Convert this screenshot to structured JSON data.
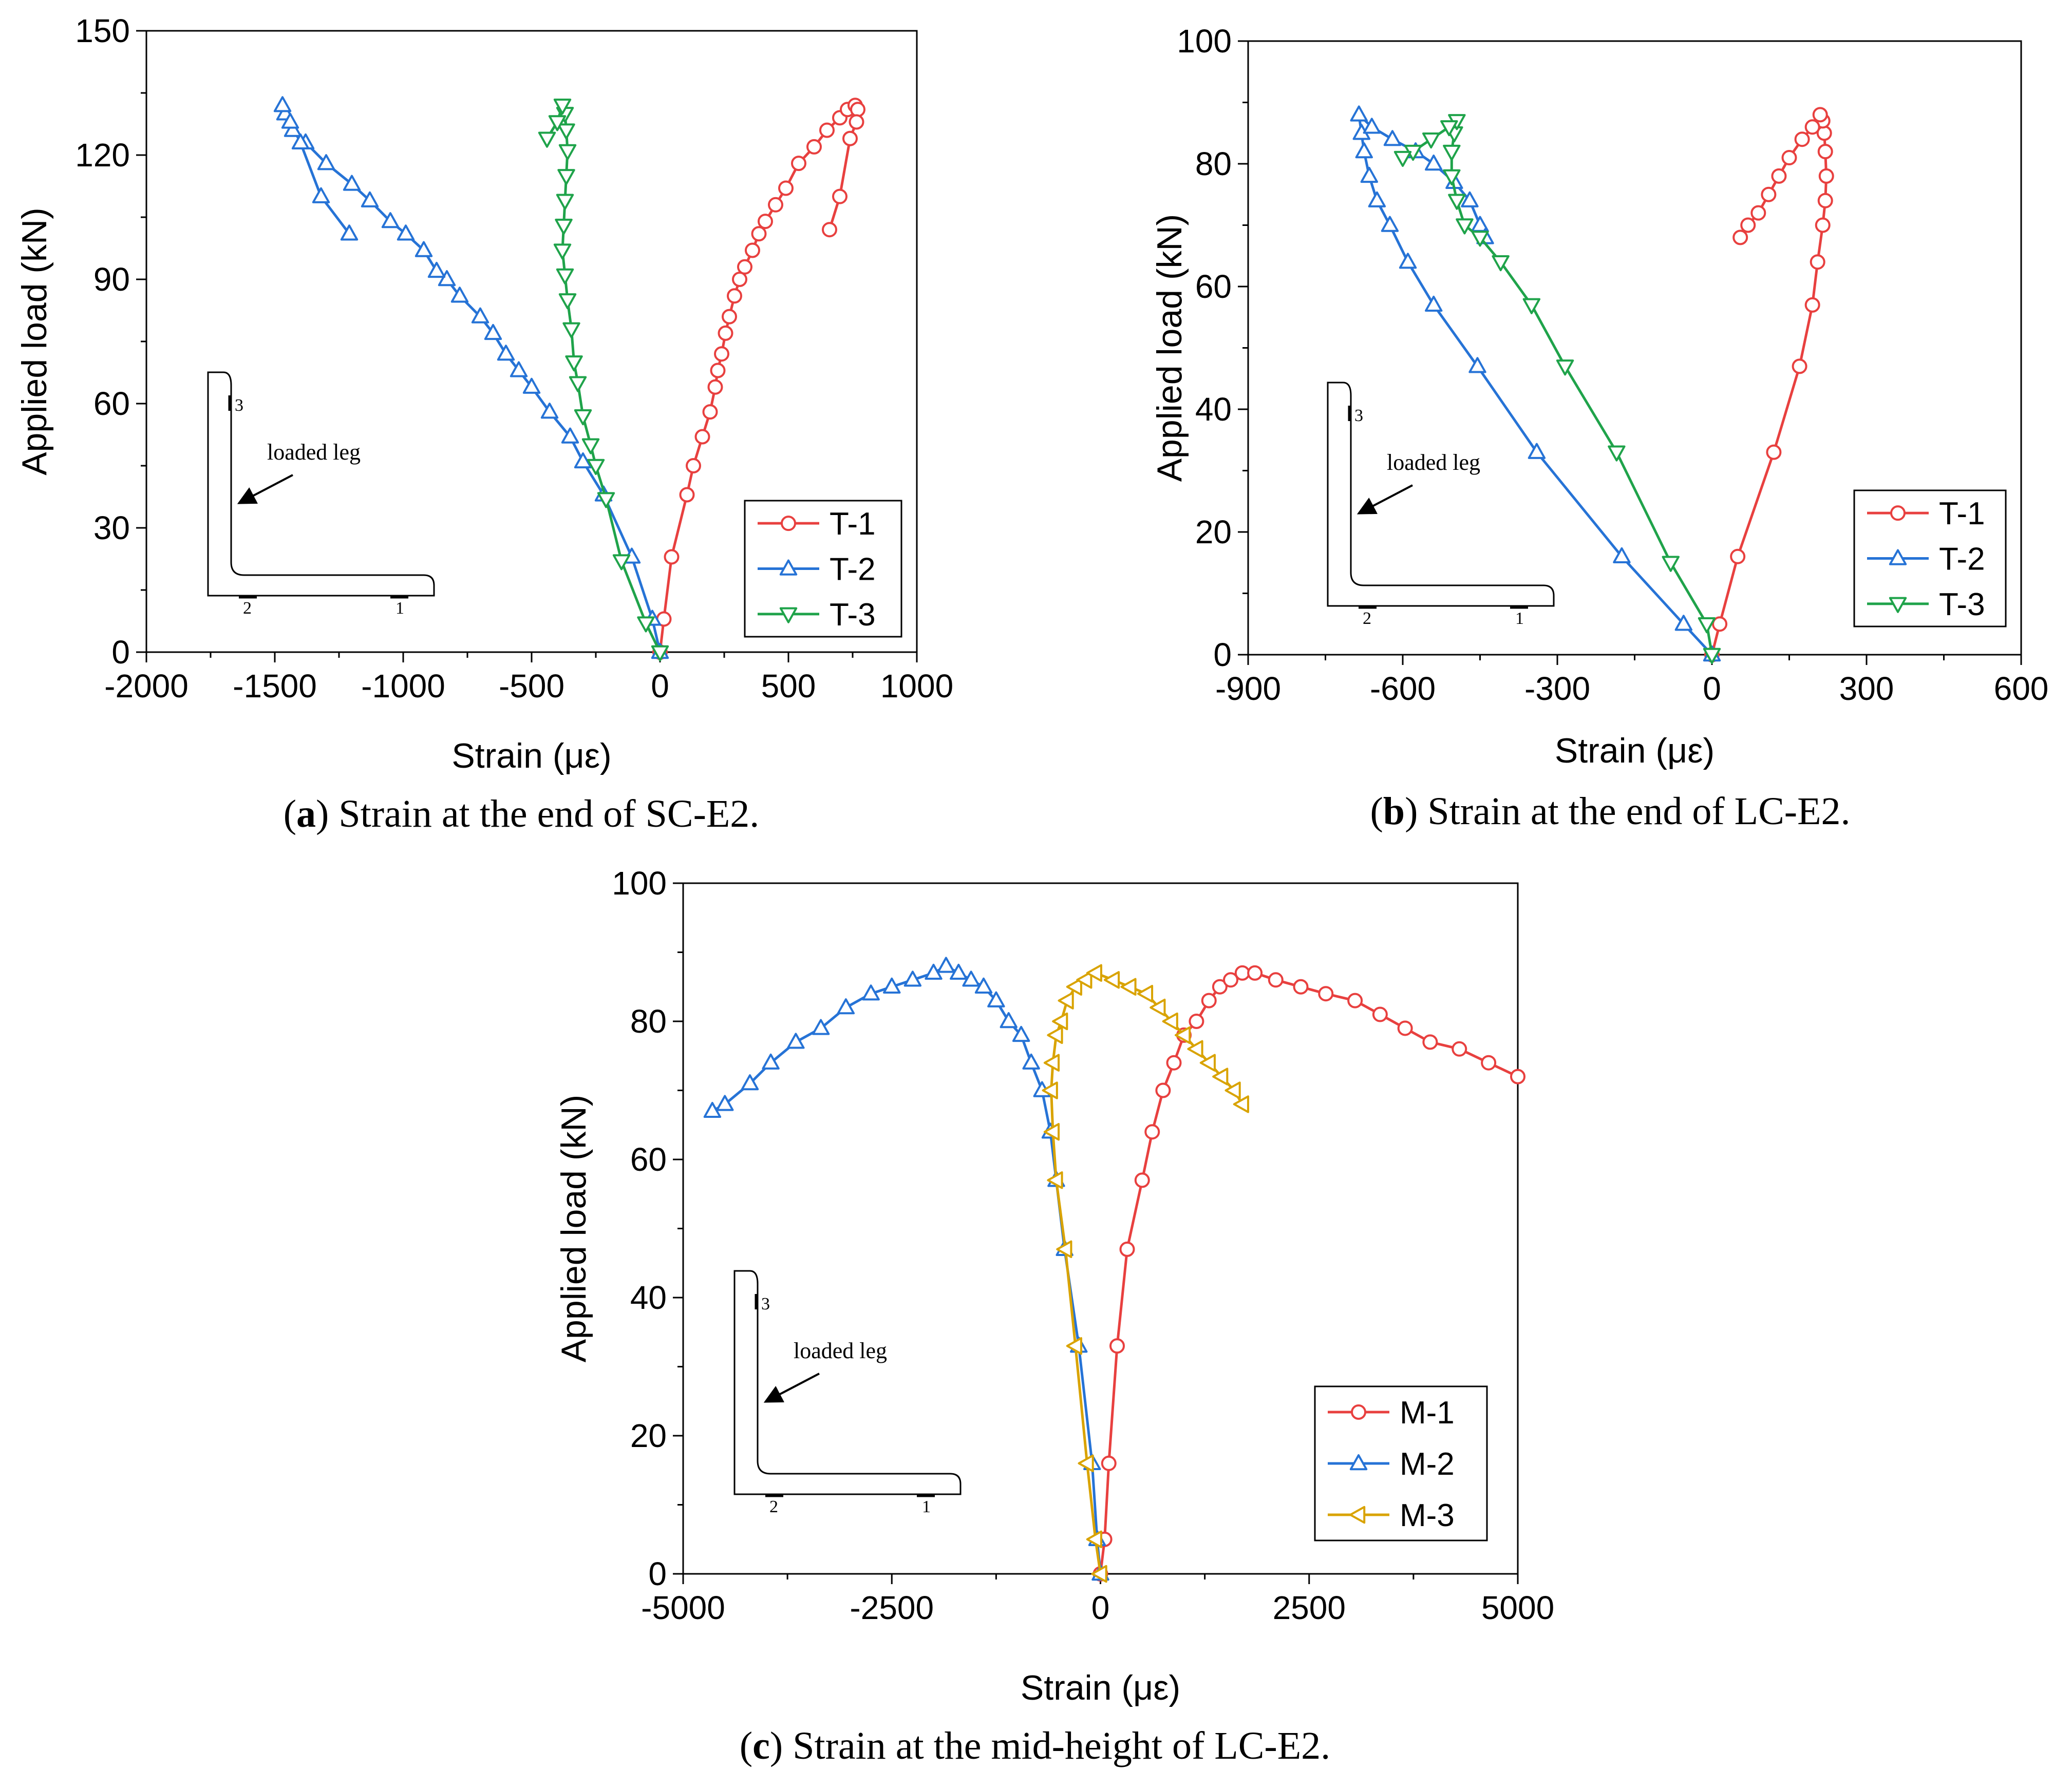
{
  "chart_data": [
    {
      "type": "line",
      "panel": "a",
      "caption_letter": "a",
      "caption_text": "Strain at the end of SC-E2.",
      "xlabel": "Strain (με)",
      "ylabel": "Applied load (kN)",
      "xlim": [
        -2000,
        1000
      ],
      "ylim": [
        0,
        150
      ],
      "xticks": [
        -2000,
        -1500,
        -1000,
        -500,
        0,
        500,
        1000
      ],
      "yticks": [
        0,
        30,
        60,
        90,
        120,
        150
      ],
      "xtick_labels": [
        "-2000",
        "-1500",
        "-1000",
        "-500",
        "0",
        "500",
        "1000"
      ],
      "ytick_labels": [
        "0",
        "30",
        "60",
        "90",
        "120",
        "150"
      ],
      "legend_position": "bottom-right",
      "inset": {
        "label": "loaded leg",
        "gauge_1": "1",
        "gauge_2": "2",
        "gauge_3": "3"
      },
      "series": [
        {
          "name": "T-1",
          "marker": "circle",
          "color": "#e8403f",
          "points": [
            [
              0,
              0
            ],
            [
              15,
              8
            ],
            [
              45,
              23
            ],
            [
              105,
              38
            ],
            [
              130,
              45
            ],
            [
              165,
              52
            ],
            [
              195,
              58
            ],
            [
              215,
              64
            ],
            [
              225,
              68
            ],
            [
              240,
              72
            ],
            [
              255,
              77
            ],
            [
              270,
              81
            ],
            [
              290,
              86
            ],
            [
              310,
              90
            ],
            [
              330,
              93
            ],
            [
              360,
              97
            ],
            [
              385,
              101
            ],
            [
              410,
              104
            ],
            [
              450,
              108
            ],
            [
              490,
              112
            ],
            [
              540,
              118
            ],
            [
              600,
              122
            ],
            [
              650,
              126
            ],
            [
              700,
              129
            ],
            [
              730,
              131
            ],
            [
              760,
              132
            ],
            [
              770,
              131
            ],
            [
              765,
              128
            ],
            [
              740,
              124
            ],
            [
              700,
              110
            ],
            [
              660,
              102
            ]
          ]
        },
        {
          "name": "T-2",
          "marker": "triangle-up",
          "color": "#2673d6",
          "points": [
            [
              0,
              0
            ],
            [
              -30,
              8
            ],
            [
              -110,
              23
            ],
            [
              -220,
              38
            ],
            [
              -300,
              46
            ],
            [
              -350,
              52
            ],
            [
              -430,
              58
            ],
            [
              -500,
              64
            ],
            [
              -550,
              68
            ],
            [
              -600,
              72
            ],
            [
              -650,
              77
            ],
            [
              -700,
              81
            ],
            [
              -780,
              86
            ],
            [
              -830,
              90
            ],
            [
              -870,
              92
            ],
            [
              -920,
              97
            ],
            [
              -990,
              101
            ],
            [
              -1050,
              104
            ],
            [
              -1130,
              109
            ],
            [
              -1200,
              113
            ],
            [
              -1300,
              118
            ],
            [
              -1380,
              123
            ],
            [
              -1430,
              126
            ],
            [
              -1460,
              130
            ],
            [
              -1470,
              132
            ],
            [
              -1440,
              128
            ],
            [
              -1400,
              123
            ],
            [
              -1320,
              110
            ],
            [
              -1210,
              101
            ]
          ]
        },
        {
          "name": "T-3",
          "marker": "triangle-down",
          "color": "#1fa34a",
          "points": [
            [
              0,
              0
            ],
            [
              -55,
              7
            ],
            [
              -150,
              22
            ],
            [
              -210,
              37
            ],
            [
              -250,
              45
            ],
            [
              -270,
              50
            ],
            [
              -300,
              57
            ],
            [
              -320,
              65
            ],
            [
              -335,
              70
            ],
            [
              -345,
              78
            ],
            [
              -360,
              85
            ],
            [
              -370,
              91
            ],
            [
              -380,
              97
            ],
            [
              -375,
              103
            ],
            [
              -370,
              109
            ],
            [
              -365,
              115
            ],
            [
              -360,
              121
            ],
            [
              -365,
              126
            ],
            [
              -370,
              130
            ],
            [
              -380,
              132
            ],
            [
              -400,
              128
            ],
            [
              -440,
              124
            ]
          ]
        }
      ]
    },
    {
      "type": "line",
      "panel": "b",
      "caption_letter": "b",
      "caption_text": "Strain at the end of LC-E2.",
      "xlabel": "Strain (με)",
      "ylabel": "Applied load (kN)",
      "xlim": [
        -900,
        600
      ],
      "ylim": [
        0,
        100
      ],
      "xticks": [
        -900,
        -600,
        -300,
        0,
        300,
        600
      ],
      "yticks": [
        0,
        20,
        40,
        60,
        80,
        100
      ],
      "xtick_labels": [
        "-900",
        "-600",
        "-300",
        "0",
        "300",
        "600"
      ],
      "ytick_labels": [
        "0",
        "20",
        "40",
        "60",
        "80",
        "100"
      ],
      "legend_position": "bottom-right",
      "inset": {
        "label": "loaded leg",
        "gauge_1": "1",
        "gauge_2": "2",
        "gauge_3": "3"
      },
      "series": [
        {
          "name": "T-1",
          "marker": "circle",
          "color": "#e8403f",
          "points": [
            [
              0,
              0
            ],
            [
              15,
              5
            ],
            [
              50,
              16
            ],
            [
              120,
              33
            ],
            [
              170,
              47
            ],
            [
              195,
              57
            ],
            [
              205,
              64
            ],
            [
              215,
              70
            ],
            [
              220,
              74
            ],
            [
              222,
              78
            ],
            [
              220,
              82
            ],
            [
              218,
              85
            ],
            [
              215,
              87
            ],
            [
              210,
              88
            ],
            [
              195,
              86
            ],
            [
              175,
              84
            ],
            [
              150,
              81
            ],
            [
              130,
              78
            ],
            [
              110,
              75
            ],
            [
              90,
              72
            ],
            [
              70,
              70
            ],
            [
              55,
              68
            ]
          ]
        },
        {
          "name": "T-2",
          "marker": "triangle-up",
          "color": "#2673d6",
          "points": [
            [
              0,
              0
            ],
            [
              -55,
              5
            ],
            [
              -175,
              16
            ],
            [
              -340,
              33
            ],
            [
              -455,
              47
            ],
            [
              -540,
              57
            ],
            [
              -590,
              64
            ],
            [
              -625,
              70
            ],
            [
              -650,
              74
            ],
            [
              -665,
              78
            ],
            [
              -675,
              82
            ],
            [
              -680,
              85
            ],
            [
              -685,
              88
            ],
            [
              -660,
              86
            ],
            [
              -620,
              84
            ],
            [
              -575,
              82
            ],
            [
              -540,
              80
            ],
            [
              -500,
              77
            ],
            [
              -470,
              74
            ],
            [
              -450,
              70
            ],
            [
              -440,
              68
            ]
          ]
        },
        {
          "name": "T-3",
          "marker": "triangle-down",
          "color": "#1fa34a",
          "points": [
            [
              0,
              0
            ],
            [
              -10,
              5
            ],
            [
              -80,
              15
            ],
            [
              -185,
              33
            ],
            [
              -285,
              47
            ],
            [
              -350,
              57
            ],
            [
              -410,
              64
            ],
            [
              -450,
              68
            ],
            [
              -480,
              70
            ],
            [
              -495,
              74
            ],
            [
              -505,
              78
            ],
            [
              -505,
              82
            ],
            [
              -500,
              85
            ],
            [
              -495,
              87
            ],
            [
              -510,
              86
            ],
            [
              -545,
              84
            ],
            [
              -580,
              82
            ],
            [
              -600,
              81
            ]
          ]
        }
      ]
    },
    {
      "type": "line",
      "panel": "c",
      "caption_letter": "c",
      "caption_text": "Strain at the mid-height of LC-E2.",
      "xlabel": "Strain (με)",
      "ylabel": "Applied load (kN)",
      "xlim": [
        -5000,
        5000
      ],
      "ylim": [
        0,
        100
      ],
      "xticks": [
        -5000,
        -2500,
        0,
        2500,
        5000
      ],
      "yticks": [
        0,
        20,
        40,
        60,
        80,
        100
      ],
      "xtick_labels": [
        "-5000",
        "-2500",
        "0",
        "2500",
        "5000"
      ],
      "ytick_labels": [
        "0",
        "20",
        "40",
        "60",
        "80",
        "100"
      ],
      "legend_position": "bottom-right",
      "inset": {
        "label": "loaded leg",
        "gauge_1": "1",
        "gauge_2": "2",
        "gauge_3": "3"
      },
      "series": [
        {
          "name": "M-1",
          "marker": "circle",
          "color": "#e8403f",
          "points": [
            [
              0,
              0
            ],
            [
              50,
              5
            ],
            [
              100,
              16
            ],
            [
              200,
              33
            ],
            [
              320,
              47
            ],
            [
              500,
              57
            ],
            [
              620,
              64
            ],
            [
              750,
              70
            ],
            [
              880,
              74
            ],
            [
              1000,
              78
            ],
            [
              1150,
              80
            ],
            [
              1300,
              83
            ],
            [
              1430,
              85
            ],
            [
              1560,
              86
            ],
            [
              1700,
              87
            ],
            [
              1850,
              87
            ],
            [
              2100,
              86
            ],
            [
              2400,
              85
            ],
            [
              2700,
              84
            ],
            [
              3050,
              83
            ],
            [
              3350,
              81
            ],
            [
              3650,
              79
            ],
            [
              3950,
              77
            ],
            [
              4300,
              76
            ],
            [
              4650,
              74
            ],
            [
              5000,
              72
            ]
          ]
        },
        {
          "name": "M-2",
          "marker": "triangle-up",
          "color": "#2673d6",
          "points": [
            [
              0,
              0
            ],
            [
              -40,
              5
            ],
            [
              -100,
              16
            ],
            [
              -260,
              33
            ],
            [
              -430,
              47
            ],
            [
              -530,
              57
            ],
            [
              -600,
              64
            ],
            [
              -700,
              70
            ],
            [
              -830,
              74
            ],
            [
              -950,
              78
            ],
            [
              -1100,
              80
            ],
            [
              -1250,
              83
            ],
            [
              -1400,
              85
            ],
            [
              -1550,
              86
            ],
            [
              -1700,
              87
            ],
            [
              -1850,
              88
            ],
            [
              -2000,
              87
            ],
            [
              -2250,
              86
            ],
            [
              -2500,
              85
            ],
            [
              -2750,
              84
            ],
            [
              -3050,
              82
            ],
            [
              -3350,
              79
            ],
            [
              -3650,
              77
            ],
            [
              -3950,
              74
            ],
            [
              -4200,
              71
            ],
            [
              -4500,
              68
            ],
            [
              -4650,
              67
            ]
          ]
        },
        {
          "name": "M-3",
          "marker": "triangle-left",
          "color": "#d9a300",
          "points": [
            [
              0,
              0
            ],
            [
              -60,
              5
            ],
            [
              -160,
              16
            ],
            [
              -300,
              33
            ],
            [
              -420,
              47
            ],
            [
              -530,
              57
            ],
            [
              -570,
              64
            ],
            [
              -590,
              70
            ],
            [
              -570,
              74
            ],
            [
              -530,
              78
            ],
            [
              -470,
              80
            ],
            [
              -400,
              83
            ],
            [
              -300,
              85
            ],
            [
              -180,
              86
            ],
            [
              -60,
              87
            ],
            [
              150,
              86
            ],
            [
              350,
              85
            ],
            [
              550,
              84
            ],
            [
              700,
              82
            ],
            [
              850,
              80
            ],
            [
              1000,
              78
            ],
            [
              1150,
              76
            ],
            [
              1300,
              74
            ],
            [
              1450,
              72
            ],
            [
              1600,
              70
            ],
            [
              1700,
              68
            ]
          ]
        }
      ]
    }
  ]
}
